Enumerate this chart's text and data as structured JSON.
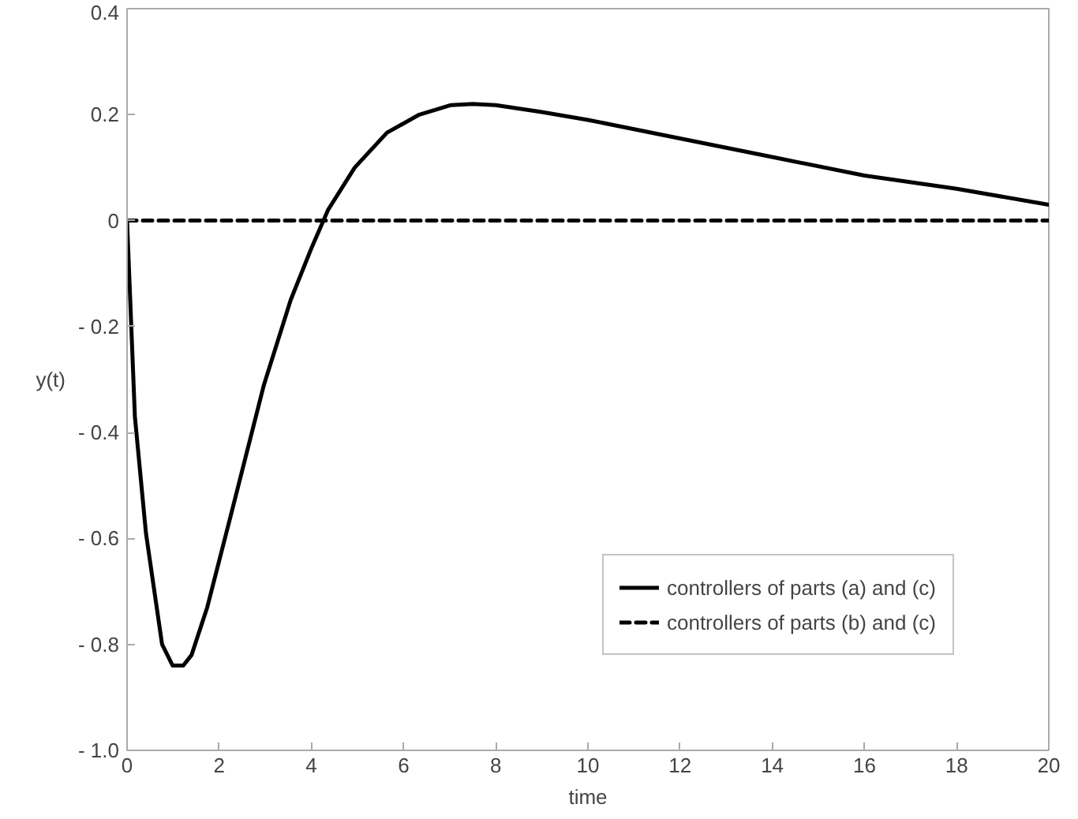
{
  "chart_data": {
    "type": "line",
    "xlabel": "time",
    "ylabel": "y(t)",
    "xlim": [
      0,
      20
    ],
    "ylim": [
      -1.0,
      0.4
    ],
    "xticks": [
      0,
      2,
      4,
      6,
      8,
      10,
      12,
      14,
      16,
      18,
      20
    ],
    "yticks": [
      {
        "value": -1.0,
        "label": "- 1.0"
      },
      {
        "value": -0.8,
        "label": "- 0.8"
      },
      {
        "value": -0.6,
        "label": "- 0.6"
      },
      {
        "value": -0.4,
        "label": "- 0.4"
      },
      {
        "value": -0.2,
        "label": "- 0.2"
      },
      0,
      0.2,
      0.4
    ],
    "grid": false,
    "legend": "bottom right",
    "marker": "none",
    "series": [
      {
        "name": "controllers of parts (a) and (c)",
        "color": "#000000",
        "line_style": "solid",
        "x": [
          0,
          0.17,
          0.41,
          0.76,
          0.99,
          1.22,
          1.4,
          1.74,
          2.27,
          2.97,
          3.55,
          4.01,
          4.36,
          4.94,
          5.64,
          6.34,
          7.03,
          7.5,
          8,
          9,
          10,
          12,
          14,
          16,
          18,
          20
        ],
        "values": [
          0,
          -0.37,
          -0.59,
          -0.8,
          -0.84,
          -0.84,
          -0.82,
          -0.73,
          -0.55,
          -0.31,
          -0.15,
          -0.05,
          0.02,
          0.1,
          0.166,
          0.2,
          0.218,
          0.22,
          0.218,
          0.205,
          0.19,
          0.155,
          0.12,
          0.085,
          0.06,
          0.03
        ]
      },
      {
        "name": "controllers of parts (b) and (c)",
        "color": "#000000",
        "line_style": "dashed",
        "x": [
          0,
          20
        ],
        "values": [
          0,
          0
        ]
      }
    ]
  }
}
